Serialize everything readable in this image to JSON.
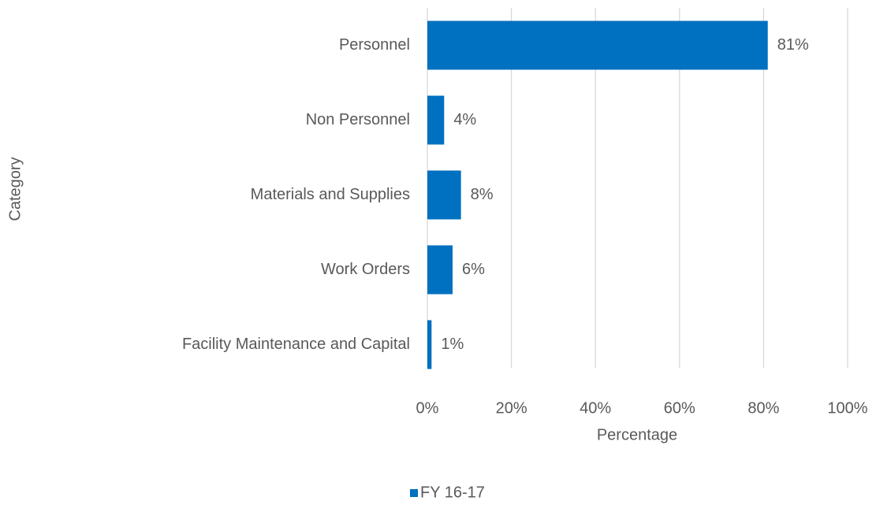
{
  "chart_data": {
    "type": "bar",
    "orientation": "horizontal",
    "x_label": "Percentage",
    "y_label": "Category",
    "categories": [
      "Personnel",
      "Non Personnel",
      "Materials and Supplies",
      "Work Orders",
      "Facility Maintenance and Capital"
    ],
    "series": [
      {
        "name": "FY 16-17",
        "color": "#0070c0",
        "values": [
          81,
          4,
          8,
          6,
          1
        ],
        "value_labels": [
          "81%",
          "4%",
          "8%",
          "6%",
          "1%"
        ]
      }
    ],
    "xlim": [
      0,
      100
    ],
    "xticks": [
      {
        "value": 0,
        "label": "0%"
      },
      {
        "value": 20,
        "label": "20%"
      },
      {
        "value": 40,
        "label": "40%"
      },
      {
        "value": 60,
        "label": "60%"
      },
      {
        "value": 80,
        "label": "80%"
      },
      {
        "value": 100,
        "label": "100%"
      }
    ],
    "grid": true,
    "legend": "bottom"
  }
}
